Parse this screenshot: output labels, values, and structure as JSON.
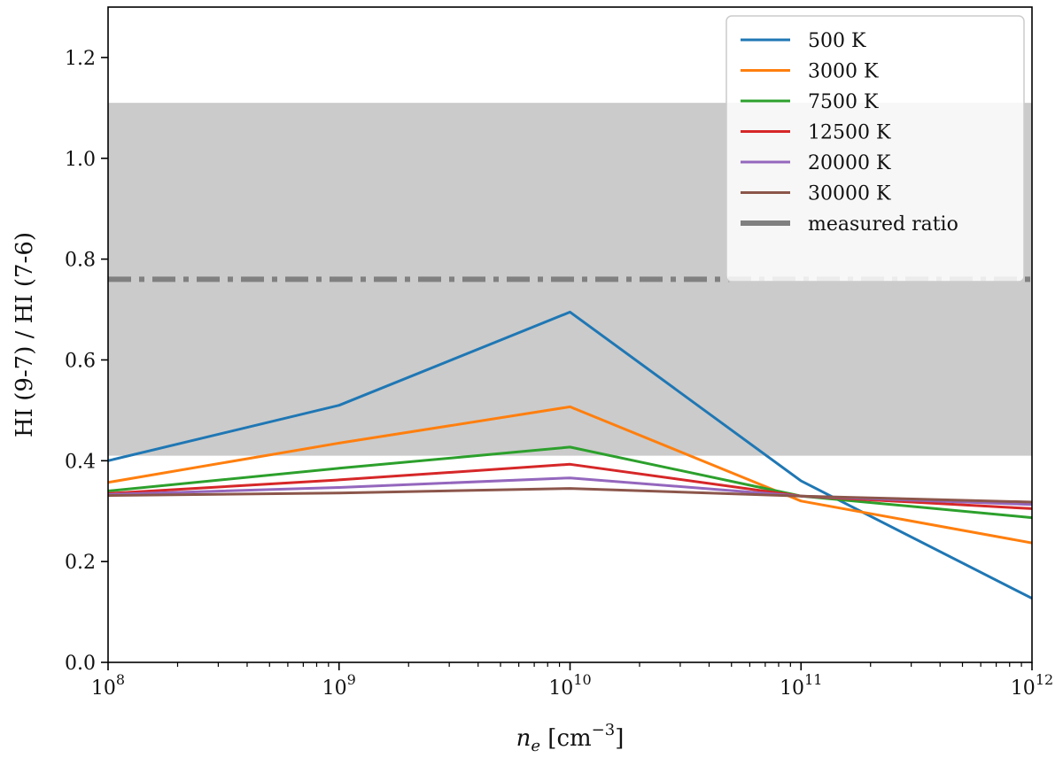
{
  "chart_data": {
    "type": "line",
    "xlabel": "n_e [cm^-3]",
    "xlabel_parts": {
      "main": "n",
      "sub": "e",
      "unit_open": " [cm",
      "unit_sup": "−3",
      "unit_close": "]"
    },
    "ylabel": "HI (9-7) / HI (7-6)",
    "xscale": "log",
    "xlim": [
      100000000.0,
      1000000000000.0
    ],
    "ylim": [
      0.0,
      1.3
    ],
    "x": [
      100000000.0,
      1000000000.0,
      10000000000.0,
      100000000000.0,
      1000000000000.0
    ],
    "x_ticks": [
      {
        "value": 100000000.0,
        "base": "10",
        "exp": "8"
      },
      {
        "value": 1000000000.0,
        "base": "10",
        "exp": "9"
      },
      {
        "value": 10000000000.0,
        "base": "10",
        "exp": "10"
      },
      {
        "value": 100000000000.0,
        "base": "10",
        "exp": "11"
      },
      {
        "value": 1000000000000.0,
        "base": "10",
        "exp": "12"
      }
    ],
    "y_ticks": [
      0.0,
      0.2,
      0.4,
      0.6,
      0.8,
      1.0,
      1.2
    ],
    "y_tick_labels": [
      "0.0",
      "0.2",
      "0.4",
      "0.6",
      "0.8",
      "1.0",
      "1.2"
    ],
    "series": [
      {
        "name": "500 K",
        "color": "#1f77b4",
        "values": [
          0.4,
          0.51,
          0.695,
          0.36,
          0.127
        ]
      },
      {
        "name": "3000 K",
        "color": "#ff7f0e",
        "values": [
          0.357,
          0.435,
          0.507,
          0.32,
          0.237
        ]
      },
      {
        "name": "7500 K",
        "color": "#2ca02c",
        "values": [
          0.34,
          0.385,
          0.427,
          0.33,
          0.287
        ]
      },
      {
        "name": "12500 K",
        "color": "#d62728",
        "values": [
          0.335,
          0.362,
          0.393,
          0.33,
          0.305
        ]
      },
      {
        "name": "20000 K",
        "color": "#9467bd",
        "values": [
          0.333,
          0.347,
          0.366,
          0.33,
          0.313
        ]
      },
      {
        "name": "30000 K",
        "color": "#8c564b",
        "values": [
          0.331,
          0.336,
          0.345,
          0.33,
          0.318
        ]
      }
    ],
    "measured_ratio": {
      "name": "measured ratio",
      "value": 0.76,
      "color": "#808080",
      "band": [
        0.41,
        1.11
      ],
      "band_color": "#c8c8c8"
    },
    "grid": false,
    "legend_placement": "top-right"
  }
}
